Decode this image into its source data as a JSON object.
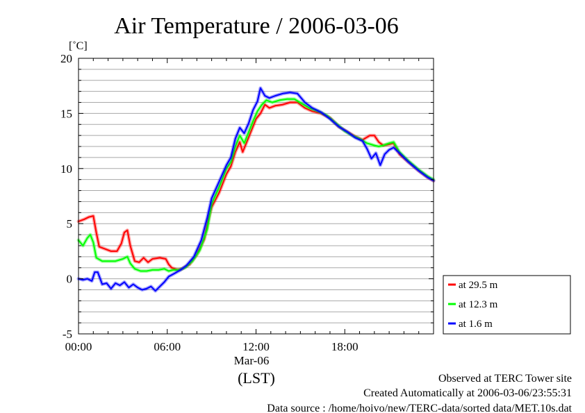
{
  "chart_data": {
    "type": "line",
    "title": "Air Temperature / 2006-03-06",
    "ylabel": "[˚C]",
    "xlabel": "(LST)",
    "x_date_label": "Mar-06",
    "xlim": [
      0,
      24
    ],
    "ylim": [
      -5,
      20
    ],
    "x_ticks": [
      {
        "value": 0,
        "label": "00:00"
      },
      {
        "value": 6,
        "label": "06:00"
      },
      {
        "value": 12,
        "label": "12:00"
      },
      {
        "value": 18,
        "label": "18:00"
      }
    ],
    "y_ticks": [
      {
        "value": -5,
        "label": "-5"
      },
      {
        "value": 0,
        "label": "0"
      },
      {
        "value": 5,
        "label": "5"
      },
      {
        "value": 10,
        "label": "10"
      },
      {
        "value": 15,
        "label": "15"
      },
      {
        "value": 20,
        "label": "20"
      }
    ],
    "grid": true,
    "legend_position": "right-bottom",
    "series": [
      {
        "name": "at 29.5 m",
        "color": "#ff0000",
        "points": [
          [
            0,
            5.2
          ],
          [
            0.4,
            5.4
          ],
          [
            0.7,
            5.6
          ],
          [
            1.0,
            5.7
          ],
          [
            1.2,
            4.2
          ],
          [
            1.4,
            2.9
          ],
          [
            1.8,
            2.7
          ],
          [
            2.2,
            2.5
          ],
          [
            2.6,
            2.5
          ],
          [
            2.9,
            3.2
          ],
          [
            3.1,
            4.2
          ],
          [
            3.3,
            4.4
          ],
          [
            3.5,
            3.0
          ],
          [
            3.8,
            1.6
          ],
          [
            4.1,
            1.5
          ],
          [
            4.4,
            1.9
          ],
          [
            4.7,
            1.5
          ],
          [
            5.0,
            1.8
          ],
          [
            5.5,
            1.9
          ],
          [
            5.9,
            1.8
          ],
          [
            6.1,
            1.3
          ],
          [
            6.3,
            1.0
          ],
          [
            6.7,
            0.8
          ],
          [
            7.0,
            0.9
          ],
          [
            7.5,
            1.3
          ],
          [
            8.0,
            2.2
          ],
          [
            8.5,
            3.6
          ],
          [
            8.8,
            5.5
          ],
          [
            9.0,
            6.5
          ],
          [
            9.5,
            7.8
          ],
          [
            10.0,
            9.5
          ],
          [
            10.3,
            10.2
          ],
          [
            10.6,
            11.5
          ],
          [
            10.9,
            12.4
          ],
          [
            11.1,
            11.5
          ],
          [
            11.4,
            12.5
          ],
          [
            11.7,
            13.5
          ],
          [
            12.0,
            14.5
          ],
          [
            12.3,
            15.0
          ],
          [
            12.6,
            15.8
          ],
          [
            12.9,
            15.5
          ],
          [
            13.3,
            15.7
          ],
          [
            13.8,
            15.8
          ],
          [
            14.3,
            16.0
          ],
          [
            14.8,
            16.0
          ],
          [
            15.3,
            15.5
          ],
          [
            15.8,
            15.2
          ],
          [
            16.4,
            15.0
          ],
          [
            17.0,
            14.6
          ],
          [
            17.6,
            13.8
          ],
          [
            18.2,
            13.3
          ],
          [
            18.7,
            12.9
          ],
          [
            19.2,
            12.6
          ],
          [
            19.7,
            13.0
          ],
          [
            20.0,
            13.0
          ],
          [
            20.3,
            12.4
          ],
          [
            20.6,
            12.1
          ],
          [
            21.0,
            12.2
          ],
          [
            21.3,
            12.3
          ],
          [
            21.7,
            11.3
          ],
          [
            22.3,
            10.6
          ],
          [
            23.0,
            9.8
          ],
          [
            23.6,
            9.2
          ],
          [
            24.0,
            8.9
          ]
        ]
      },
      {
        "name": "at 12.3 m",
        "color": "#00ff00",
        "points": [
          [
            0,
            3.5
          ],
          [
            0.3,
            3.0
          ],
          [
            0.6,
            3.7
          ],
          [
            0.8,
            4.0
          ],
          [
            1.0,
            3.3
          ],
          [
            1.2,
            1.9
          ],
          [
            1.6,
            1.6
          ],
          [
            2.0,
            1.6
          ],
          [
            2.5,
            1.6
          ],
          [
            3.0,
            1.8
          ],
          [
            3.3,
            2.0
          ],
          [
            3.5,
            1.4
          ],
          [
            3.8,
            0.9
          ],
          [
            4.2,
            0.7
          ],
          [
            4.6,
            0.7
          ],
          [
            5.0,
            0.8
          ],
          [
            5.4,
            0.8
          ],
          [
            5.8,
            0.9
          ],
          [
            6.1,
            0.7
          ],
          [
            6.4,
            0.8
          ],
          [
            6.8,
            0.8
          ],
          [
            7.2,
            1.0
          ],
          [
            7.7,
            1.6
          ],
          [
            8.2,
            2.6
          ],
          [
            8.7,
            4.5
          ],
          [
            9.0,
            6.8
          ],
          [
            9.5,
            8.3
          ],
          [
            10.0,
            10.0
          ],
          [
            10.3,
            10.6
          ],
          [
            10.6,
            12.0
          ],
          [
            10.9,
            13.0
          ],
          [
            11.2,
            12.3
          ],
          [
            11.5,
            13.3
          ],
          [
            11.8,
            14.3
          ],
          [
            12.1,
            15.2
          ],
          [
            12.4,
            15.8
          ],
          [
            12.7,
            16.2
          ],
          [
            13.1,
            16.0
          ],
          [
            13.6,
            16.2
          ],
          [
            14.1,
            16.3
          ],
          [
            14.6,
            16.3
          ],
          [
            15.1,
            15.9
          ],
          [
            15.6,
            15.5
          ],
          [
            16.2,
            15.2
          ],
          [
            16.8,
            14.8
          ],
          [
            17.4,
            14.1
          ],
          [
            18.0,
            13.4
          ],
          [
            18.5,
            13.0
          ],
          [
            19.0,
            12.7
          ],
          [
            19.5,
            12.3
          ],
          [
            20.0,
            12.1
          ],
          [
            20.3,
            12.0
          ],
          [
            20.6,
            12.1
          ],
          [
            21.0,
            12.3
          ],
          [
            21.3,
            12.4
          ],
          [
            21.7,
            11.5
          ],
          [
            22.3,
            10.7
          ],
          [
            23.0,
            9.9
          ],
          [
            23.6,
            9.3
          ],
          [
            24.0,
            9.0
          ]
        ]
      },
      {
        "name": "at 1.6 m",
        "color": "#0000ff",
        "points": [
          [
            0,
            0.0
          ],
          [
            0.3,
            -0.1
          ],
          [
            0.6,
            0.0
          ],
          [
            0.9,
            -0.2
          ],
          [
            1.1,
            0.6
          ],
          [
            1.3,
            0.6
          ],
          [
            1.6,
            -0.5
          ],
          [
            1.9,
            -0.4
          ],
          [
            2.2,
            -0.9
          ],
          [
            2.5,
            -0.4
          ],
          [
            2.8,
            -0.6
          ],
          [
            3.1,
            -0.3
          ],
          [
            3.4,
            -0.8
          ],
          [
            3.7,
            -0.5
          ],
          [
            4.0,
            -0.8
          ],
          [
            4.3,
            -1.0
          ],
          [
            4.6,
            -0.9
          ],
          [
            4.9,
            -0.7
          ],
          [
            5.2,
            -1.1
          ],
          [
            5.5,
            -0.7
          ],
          [
            5.8,
            -0.3
          ],
          [
            6.1,
            0.2
          ],
          [
            6.5,
            0.5
          ],
          [
            6.9,
            0.8
          ],
          [
            7.3,
            1.2
          ],
          [
            7.8,
            2.0
          ],
          [
            8.3,
            3.5
          ],
          [
            8.7,
            5.5
          ],
          [
            9.0,
            7.3
          ],
          [
            9.5,
            8.8
          ],
          [
            10.0,
            10.3
          ],
          [
            10.3,
            11.0
          ],
          [
            10.6,
            12.7
          ],
          [
            10.9,
            13.7
          ],
          [
            11.2,
            13.2
          ],
          [
            11.5,
            14.1
          ],
          [
            11.8,
            15.3
          ],
          [
            12.1,
            16.1
          ],
          [
            12.3,
            17.3
          ],
          [
            12.6,
            16.6
          ],
          [
            12.9,
            16.4
          ],
          [
            13.3,
            16.6
          ],
          [
            13.8,
            16.8
          ],
          [
            14.3,
            16.9
          ],
          [
            14.8,
            16.8
          ],
          [
            15.3,
            16.0
          ],
          [
            15.8,
            15.5
          ],
          [
            16.4,
            15.1
          ],
          [
            17.0,
            14.5
          ],
          [
            17.6,
            13.8
          ],
          [
            18.2,
            13.3
          ],
          [
            18.7,
            12.8
          ],
          [
            19.2,
            12.5
          ],
          [
            19.5,
            11.8
          ],
          [
            19.8,
            10.9
          ],
          [
            20.1,
            11.4
          ],
          [
            20.4,
            10.3
          ],
          [
            20.7,
            11.3
          ],
          [
            21.0,
            11.7
          ],
          [
            21.3,
            11.9
          ],
          [
            21.7,
            11.4
          ],
          [
            22.3,
            10.6
          ],
          [
            23.0,
            9.8
          ],
          [
            23.6,
            9.2
          ],
          [
            24.0,
            8.9
          ]
        ]
      }
    ]
  },
  "footer": {
    "line1": "Observed at TERC Tower site",
    "line2": "Created Automatically at 2006-03-06/23:55:31",
    "line3": "Data source : /home/hoivo/new/TERC-data/sorted  data/MET.10s.dat"
  }
}
